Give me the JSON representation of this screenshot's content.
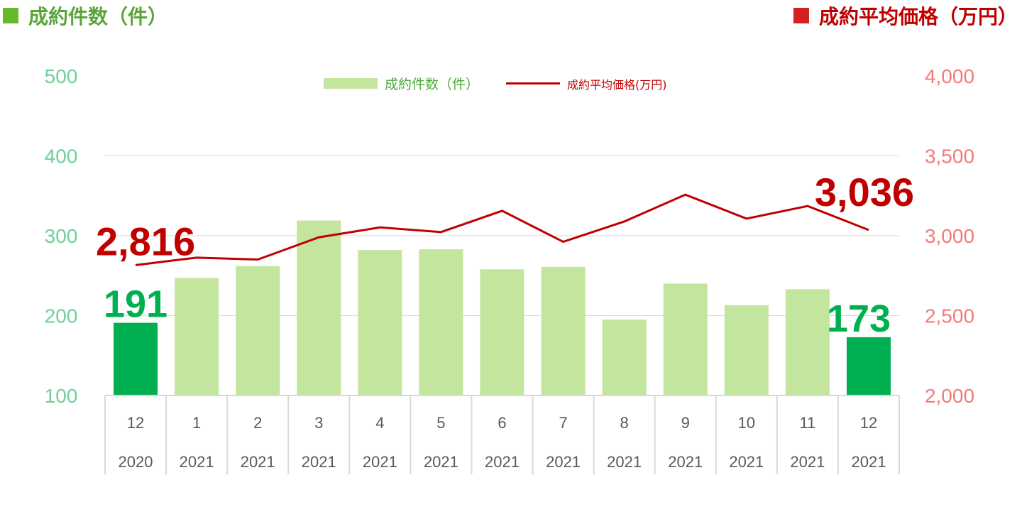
{
  "titles": {
    "left": "成約件数（件）",
    "right": "成約平均価格（万円）"
  },
  "legend": {
    "bar_label": "成約件数（件）",
    "line_label": "成約平均価格(万円)"
  },
  "colors": {
    "bar": "#c3e59d",
    "bar_highlight": "#00b050",
    "line": "#c00000",
    "left_axis": "#6fcf97",
    "right_axis": "#f27979",
    "gridline": "#d9d9d9",
    "category_text": "#595959"
  },
  "chart_data": {
    "type": "bar",
    "categories": [
      "12",
      "1",
      "2",
      "3",
      "4",
      "5",
      "6",
      "7",
      "8",
      "9",
      "10",
      "11",
      "12"
    ],
    "category_years": [
      "2020",
      "2021",
      "2021",
      "2021",
      "2021",
      "2021",
      "2021",
      "2021",
      "2021",
      "2021",
      "2021",
      "2021",
      "2021"
    ],
    "series": [
      {
        "name": "成約件数（件）",
        "type": "bar",
        "axis": "left",
        "values": [
          191,
          247,
          262,
          319,
          282,
          283,
          258,
          261,
          195,
          240,
          213,
          233,
          173
        ],
        "highlight": [
          true,
          false,
          false,
          false,
          false,
          false,
          false,
          false,
          false,
          false,
          false,
          false,
          true
        ]
      },
      {
        "name": "成約平均価格(万円)",
        "type": "line",
        "axis": "right",
        "values": [
          2816,
          2863,
          2851,
          2990,
          3052,
          3023,
          3156,
          2962,
          3089,
          3257,
          3107,
          3186,
          3036
        ]
      }
    ],
    "left_axis": {
      "ylim": [
        100,
        500
      ],
      "ticks": [
        "100",
        "200",
        "300",
        "400",
        "500"
      ]
    },
    "right_axis": {
      "ylim": [
        2000,
        4000
      ],
      "ticks": [
        "2,000",
        "2,500",
        "3,000",
        "3,500",
        "4,000"
      ]
    },
    "annotations": {
      "bar_first": "191",
      "bar_last": "173",
      "line_first": "2,816",
      "line_last": "3,036"
    },
    "legend_position": "top-center",
    "grid": true
  }
}
